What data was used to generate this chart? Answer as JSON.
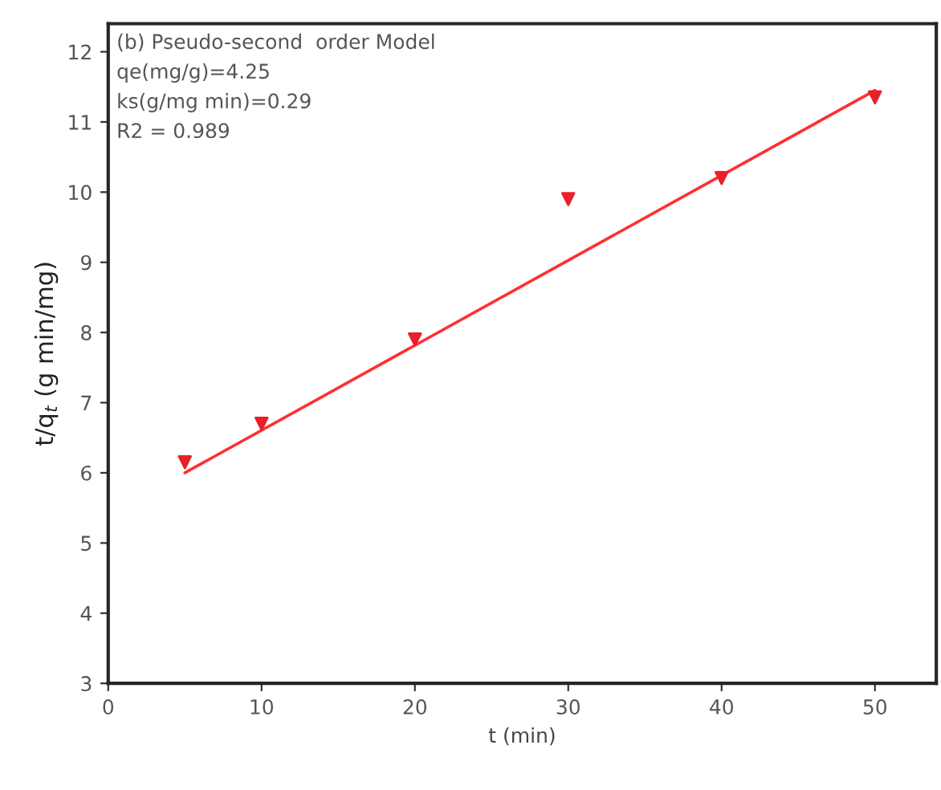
{
  "chart_data": {
    "type": "scatter",
    "xlabel": "t (min)",
    "ylabel": "t/q$_{t}$ (g min/mg)",
    "annotations": [
      "(b) Pseudo-second  order Model",
      "qe(mg/g)=4.25",
      "ks(g/mg min)=0.29",
      "R2 = 0.989"
    ],
    "series": [
      {
        "color": "#e8202a",
        "x": [
          5,
          10,
          20,
          30,
          40,
          50
        ],
        "values": [
          6.15,
          6.7,
          7.9,
          9.9,
          10.2,
          11.35
        ],
        "marker": "triangle"
      },
      {
        "type": "line",
        "color": "#ff3030",
        "x": [
          5,
          50
        ],
        "values": [
          6.0,
          11.45
        ],
        "marker": "none"
      }
    ],
    "xlim": [
      0,
      54
    ],
    "ylim": [
      3,
      12.4
    ],
    "xticks": [
      0,
      10,
      20,
      30,
      40,
      50
    ],
    "yticks": [
      3,
      4,
      5,
      6,
      7,
      8,
      9,
      10,
      11,
      12
    ],
    "grid": false,
    "legend": false
  }
}
